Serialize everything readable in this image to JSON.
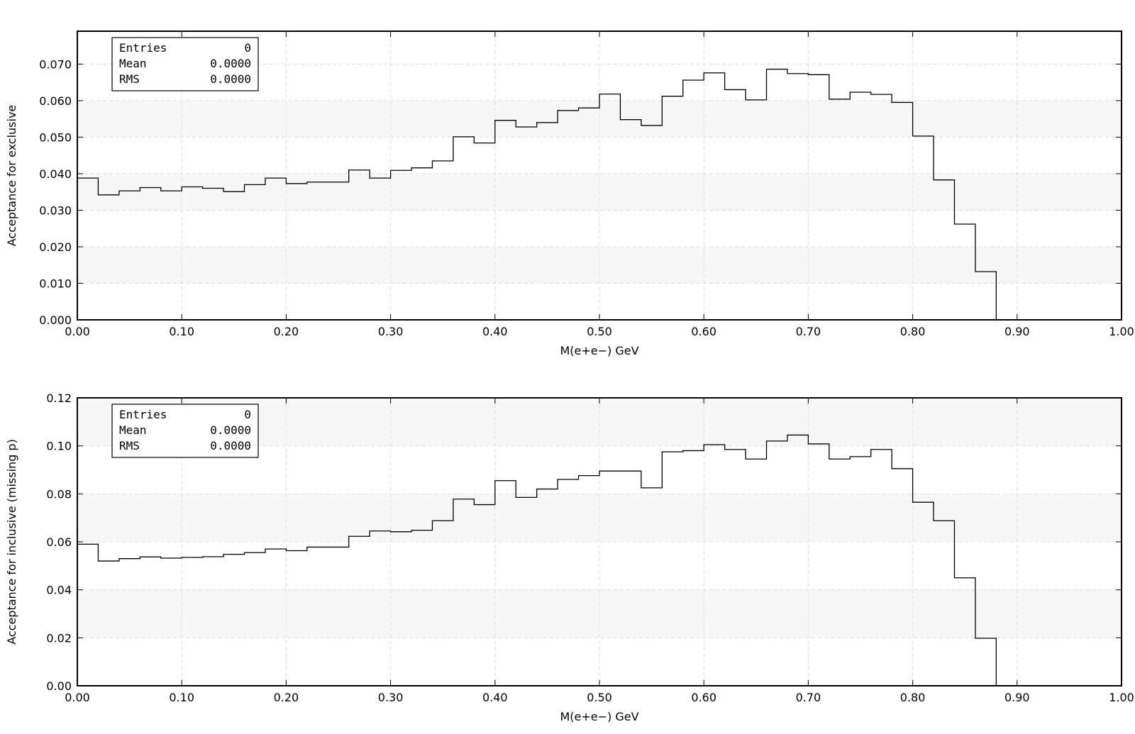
{
  "chart_data": [
    {
      "type": "histogram",
      "title": "",
      "xlabel": "M(e+e−) GeV",
      "ylabel": "Acceptance for exclusive",
      "xlim": [
        0.0,
        1.0
      ],
      "ylim": [
        0.0,
        0.079
      ],
      "x_ticks": [
        0.0,
        0.1,
        0.2,
        0.3,
        0.4,
        0.5,
        0.6,
        0.7,
        0.8,
        0.9,
        1.0
      ],
      "x_tick_labels": [
        "0.00",
        "0.10",
        "0.20",
        "0.30",
        "0.40",
        "0.50",
        "0.60",
        "0.70",
        "0.80",
        "0.90",
        "1.00"
      ],
      "y_ticks": [
        0.0,
        0.01,
        0.02,
        0.03,
        0.04,
        0.05,
        0.06,
        0.07
      ],
      "y_tick_labels": [
        "0.000",
        "0.010",
        "0.020",
        "0.030",
        "0.040",
        "0.050",
        "0.060",
        "0.070"
      ],
      "grid": true,
      "bin_width": 0.02,
      "bin_edges_start": 0.0,
      "values": [
        0.0388,
        0.0342,
        0.0353,
        0.0362,
        0.0353,
        0.0364,
        0.036,
        0.0351,
        0.037,
        0.0388,
        0.0373,
        0.0377,
        0.0377,
        0.041,
        0.0388,
        0.0409,
        0.0416,
        0.0435,
        0.0501,
        0.0484,
        0.0546,
        0.0528,
        0.054,
        0.0573,
        0.058,
        0.0618,
        0.0548,
        0.0532,
        0.0612,
        0.0656,
        0.0676,
        0.063,
        0.0602,
        0.0686,
        0.0674,
        0.0671,
        0.0604,
        0.0623,
        0.0617,
        0.0595,
        0.0503,
        0.0383,
        0.0262,
        0.0132,
        0,
        0,
        0,
        0,
        0,
        0
      ],
      "stats_box": {
        "location": "top-left",
        "rows": [
          {
            "label": "Entries",
            "value": "0"
          },
          {
            "label": "Mean",
            "value": "0.0000"
          },
          {
            "label": "RMS",
            "value": "0.0000"
          }
        ]
      }
    },
    {
      "type": "histogram",
      "title": "",
      "xlabel": "M(e+e−) GeV",
      "ylabel": "Acceptance for inclusive (missing p)",
      "xlim": [
        0.0,
        1.0
      ],
      "ylim": [
        0.0,
        0.12
      ],
      "x_ticks": [
        0.0,
        0.1,
        0.2,
        0.3,
        0.4,
        0.5,
        0.6,
        0.7,
        0.8,
        0.9,
        1.0
      ],
      "x_tick_labels": [
        "0.00",
        "0.10",
        "0.20",
        "0.30",
        "0.40",
        "0.50",
        "0.60",
        "0.70",
        "0.80",
        "0.90",
        "1.00"
      ],
      "y_ticks": [
        0.0,
        0.02,
        0.04,
        0.06,
        0.08,
        0.1,
        0.12
      ],
      "y_tick_labels": [
        "0.00",
        "0.02",
        "0.04",
        "0.06",
        "0.08",
        "0.10",
        "0.12"
      ],
      "grid": true,
      "bin_width": 0.02,
      "bin_edges_start": 0.0,
      "values": [
        0.059,
        0.052,
        0.053,
        0.0537,
        0.0532,
        0.0535,
        0.0538,
        0.0548,
        0.0555,
        0.057,
        0.0563,
        0.0578,
        0.0578,
        0.0623,
        0.0645,
        0.0642,
        0.0648,
        0.0688,
        0.0778,
        0.0755,
        0.0855,
        0.0785,
        0.082,
        0.086,
        0.0876,
        0.0895,
        0.0895,
        0.0825,
        0.0975,
        0.098,
        0.1005,
        0.0985,
        0.0945,
        0.102,
        0.1045,
        0.1008,
        0.0945,
        0.0955,
        0.0985,
        0.0905,
        0.0765,
        0.0688,
        0.045,
        0.0198,
        0,
        0,
        0,
        0,
        0,
        0
      ],
      "stats_box": {
        "location": "top-left",
        "rows": [
          {
            "label": "Entries",
            "value": "0"
          },
          {
            "label": "Mean",
            "value": "0.0000"
          },
          {
            "label": "RMS",
            "value": "0.0000"
          }
        ]
      }
    }
  ]
}
